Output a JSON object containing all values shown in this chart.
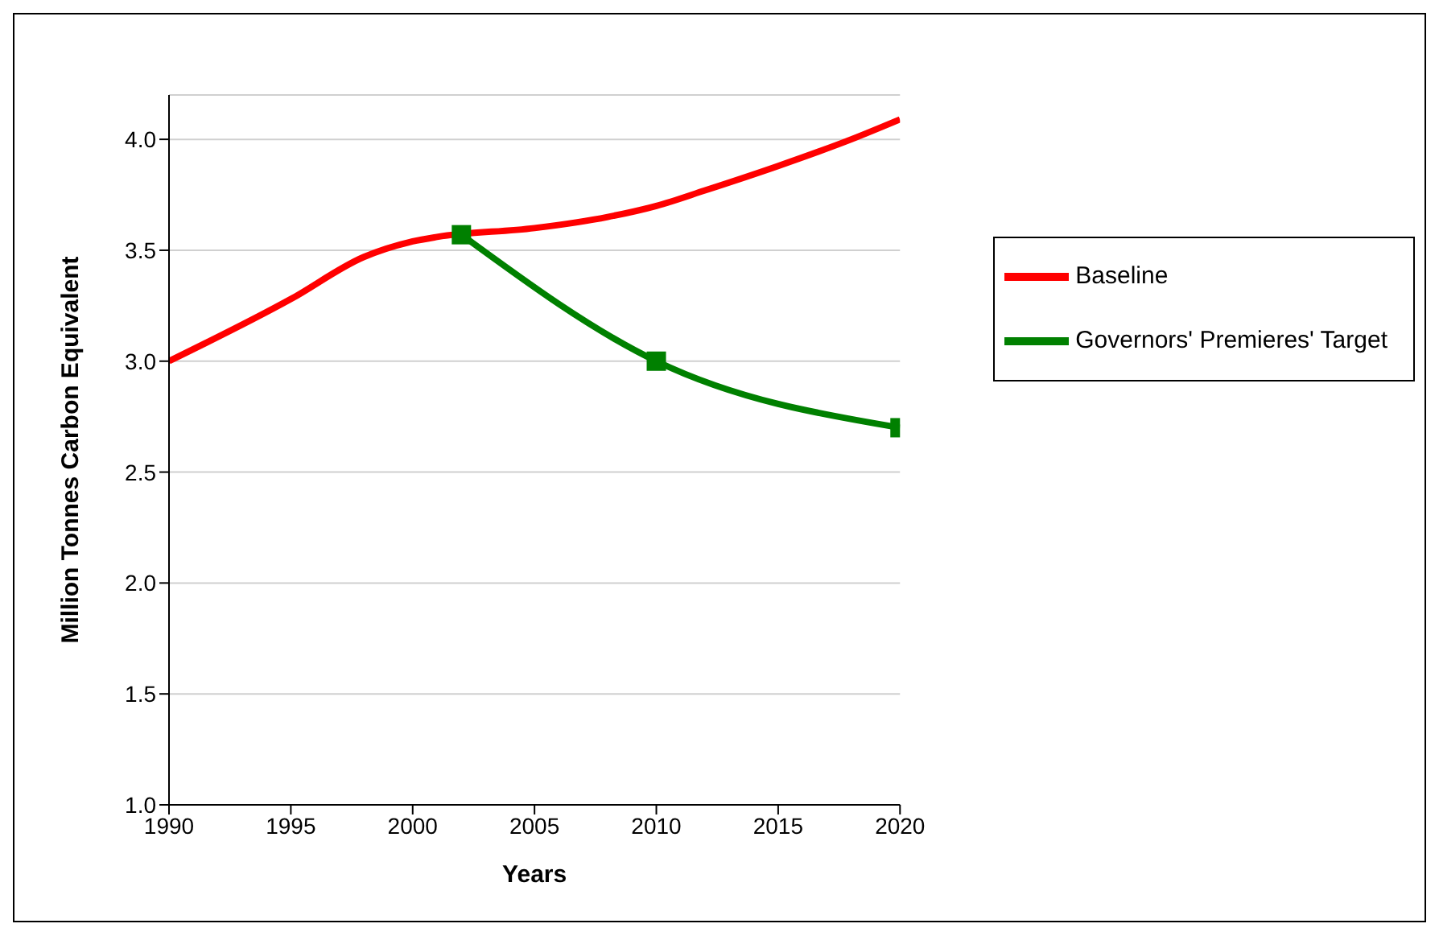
{
  "chart_data": {
    "type": "line",
    "xlabel": "Years",
    "ylabel": "Million Tonnes Carbon Equivalent",
    "xlim": [
      1990,
      2020
    ],
    "xticks": [
      1990,
      1995,
      2000,
      2005,
      2010,
      2015,
      2020
    ],
    "ylim": [
      1.0,
      4.2
    ],
    "yticks": [
      {
        "value": 1.0,
        "label": "1.0"
      },
      {
        "value": 1.5,
        "label": "1.5"
      },
      {
        "value": 2.0,
        "label": "2.0"
      },
      {
        "value": 2.5,
        "label": "2.5"
      },
      {
        "value": 3.0,
        "label": "3.0"
      },
      {
        "value": 3.5,
        "label": "3.5"
      },
      {
        "value": 4.0,
        "label": "4.0"
      }
    ],
    "grid": "y",
    "legend": "right",
    "series": [
      {
        "name": "Baseline",
        "color": "#ff0000",
        "marker": "none",
        "x": [
          1990,
          1995,
          1998,
          2000,
          2001,
          2005,
          2008,
          2010,
          2012,
          2015,
          2018,
          2020
        ],
        "values": [
          3.0,
          3.28,
          3.47,
          3.54,
          3.56,
          3.6,
          3.65,
          3.7,
          3.77,
          3.88,
          4.0,
          4.09
        ]
      },
      {
        "name": "Governors' Premieres' Target",
        "color": "#008000",
        "marker": "square",
        "x": [
          2002,
          2010,
          2020
        ],
        "values": [
          3.57,
          3.0,
          2.7
        ]
      }
    ]
  }
}
